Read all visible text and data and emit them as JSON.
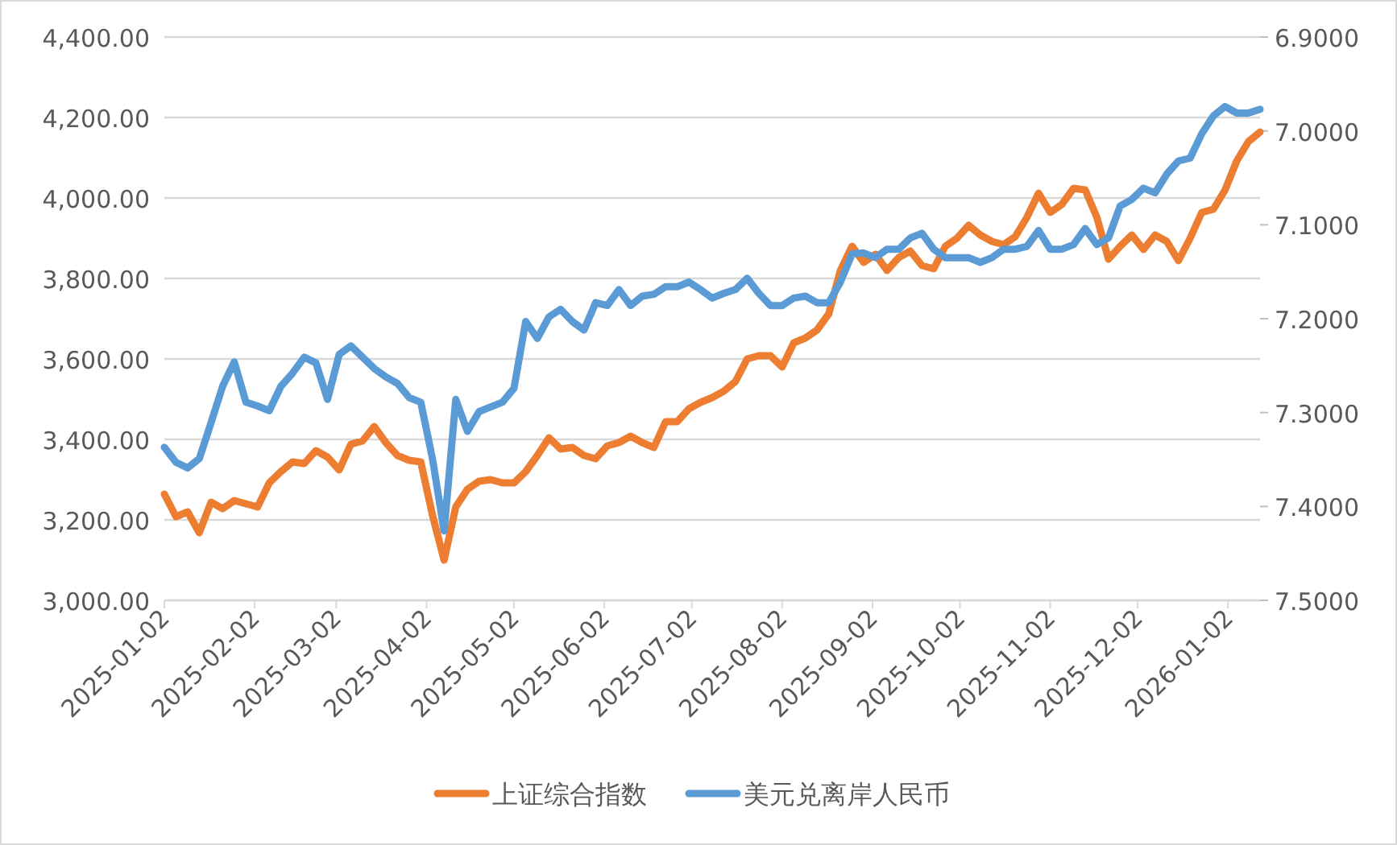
{
  "chart_data": {
    "type": "line",
    "x": [
      "2025-01-02",
      "2025-01-06",
      "2025-01-10",
      "2025-01-14",
      "2025-01-18",
      "2025-01-22",
      "2025-01-26",
      "2025-01-30",
      "2025-02-03",
      "2025-02-07",
      "2025-02-11",
      "2025-02-15",
      "2025-02-19",
      "2025-02-23",
      "2025-02-27",
      "2025-03-03",
      "2025-03-07",
      "2025-03-11",
      "2025-03-15",
      "2025-03-19",
      "2025-03-23",
      "2025-03-27",
      "2025-03-31",
      "2025-04-04",
      "2025-04-08",
      "2025-04-12",
      "2025-04-16",
      "2025-04-20",
      "2025-04-24",
      "2025-04-28",
      "2025-05-02",
      "2025-05-06",
      "2025-05-10",
      "2025-05-14",
      "2025-05-18",
      "2025-05-22",
      "2025-05-26",
      "2025-05-30",
      "2025-06-03",
      "2025-06-07",
      "2025-06-11",
      "2025-06-15",
      "2025-06-19",
      "2025-06-23",
      "2025-06-27",
      "2025-07-01",
      "2025-07-05",
      "2025-07-09",
      "2025-07-13",
      "2025-07-17",
      "2025-07-21",
      "2025-07-25",
      "2025-07-29",
      "2025-08-02",
      "2025-08-06",
      "2025-08-10",
      "2025-08-14",
      "2025-08-18",
      "2025-08-22",
      "2025-08-26",
      "2025-08-30",
      "2025-09-03",
      "2025-09-07",
      "2025-09-11",
      "2025-09-15",
      "2025-09-19",
      "2025-09-23",
      "2025-09-27",
      "2025-10-01",
      "2025-10-05",
      "2025-10-09",
      "2025-10-13",
      "2025-10-17",
      "2025-10-21",
      "2025-10-25",
      "2025-10-29",
      "2025-11-02",
      "2025-11-06",
      "2025-11-10",
      "2025-11-14",
      "2025-11-18",
      "2025-11-22",
      "2025-11-26",
      "2025-11-30",
      "2025-12-04",
      "2025-12-08",
      "2025-12-12",
      "2025-12-16",
      "2025-12-20",
      "2025-12-24",
      "2025-12-28",
      "2026-01-01",
      "2026-01-05",
      "2026-01-09",
      "2026-01-13"
    ],
    "series": [
      {
        "name": "上证综合指数",
        "color": "#ed7d31",
        "values": [
          3264,
          3208,
          3220,
          3168,
          3244,
          3228,
          3248,
          3240,
          3232,
          3292,
          3320,
          3344,
          3340,
          3372,
          3356,
          3324,
          3388,
          3396,
          3432,
          3392,
          3360,
          3348,
          3344,
          3212,
          3100,
          3232,
          3276,
          3296,
          3300,
          3292,
          3292,
          3320,
          3360,
          3404,
          3376,
          3380,
          3360,
          3352,
          3384,
          3392,
          3408,
          3392,
          3380,
          3444,
          3444,
          3476,
          3492,
          3504,
          3520,
          3544,
          3600,
          3608,
          3608,
          3580,
          3640,
          3652,
          3672,
          3712,
          3820,
          3880,
          3840,
          3860,
          3820,
          3852,
          3868,
          3832,
          3824,
          3880,
          3900,
          3932,
          3908,
          3892,
          3884,
          3904,
          3952,
          4012,
          3964,
          3984,
          4024,
          4020,
          3952,
          3848,
          3880,
          3908,
          3872,
          3908,
          3892,
          3844,
          3900,
          3964,
          3972,
          4020,
          4092,
          4140,
          4164
        ]
      },
      {
        "name": "美元兑离岸人民币",
        "color": "#5b9bd5",
        "axis": "y2",
        "values": [
          7.337,
          7.353,
          7.359,
          7.349,
          7.311,
          7.272,
          7.246,
          7.289,
          7.293,
          7.298,
          7.272,
          7.258,
          7.241,
          7.247,
          7.286,
          7.238,
          7.229,
          7.241,
          7.253,
          7.262,
          7.269,
          7.284,
          7.289,
          7.349,
          7.426,
          7.286,
          7.32,
          7.299,
          7.294,
          7.289,
          7.274,
          7.203,
          7.221,
          7.198,
          7.19,
          7.203,
          7.212,
          7.183,
          7.186,
          7.169,
          7.186,
          7.176,
          7.174,
          7.166,
          7.166,
          7.161,
          7.169,
          7.178,
          7.173,
          7.169,
          7.157,
          7.173,
          7.186,
          7.186,
          7.178,
          7.176,
          7.183,
          7.183,
          7.161,
          7.131,
          7.13,
          7.135,
          7.126,
          7.126,
          7.114,
          7.109,
          7.126,
          7.135,
          7.135,
          7.135,
          7.14,
          7.135,
          7.126,
          7.126,
          7.123,
          7.106,
          7.126,
          7.126,
          7.121,
          7.104,
          7.121,
          7.114,
          7.08,
          7.073,
          7.061,
          7.066,
          7.046,
          7.032,
          7.029,
          7.003,
          6.984,
          6.974,
          6.981,
          6.981,
          6.977
        ]
      }
    ],
    "xlim": [
      "2025-01-02",
      "2026-01-13"
    ],
    "xticks": [
      "2025-01-02",
      "2025-02-02",
      "2025-03-02",
      "2025-04-02",
      "2025-05-02",
      "2025-06-02",
      "2025-07-02",
      "2025-08-02",
      "2025-09-02",
      "2025-10-02",
      "2025-11-02",
      "2025-12-02",
      "2026-01-02"
    ],
    "ylim": [
      3000,
      4400
    ],
    "yticks": [
      {
        "value": 3000,
        "label": "3,000.00"
      },
      {
        "value": 3200,
        "label": "3,200.00"
      },
      {
        "value": 3400,
        "label": "3,400.00"
      },
      {
        "value": 3600,
        "label": "3,600.00"
      },
      {
        "value": 3800,
        "label": "3,800.00"
      },
      {
        "value": 4000,
        "label": "4,000.00"
      },
      {
        "value": 4200,
        "label": "4,200.00"
      },
      {
        "value": 4400,
        "label": "4,400.00"
      }
    ],
    "y2lim": [
      7.5,
      6.9
    ],
    "y2ticks": [
      {
        "value": 7.5,
        "label": "7.5000"
      },
      {
        "value": 7.4,
        "label": "7.4000"
      },
      {
        "value": 7.3,
        "label": "7.3000"
      },
      {
        "value": 7.2,
        "label": "7.2000"
      },
      {
        "value": 7.1,
        "label": "7.1000"
      },
      {
        "value": 7.0,
        "label": "7.0000"
      },
      {
        "value": 6.9,
        "label": "6.9000"
      }
    ],
    "grid": "y",
    "legend": "bottom",
    "line_style": "solid",
    "marker": "none"
  }
}
